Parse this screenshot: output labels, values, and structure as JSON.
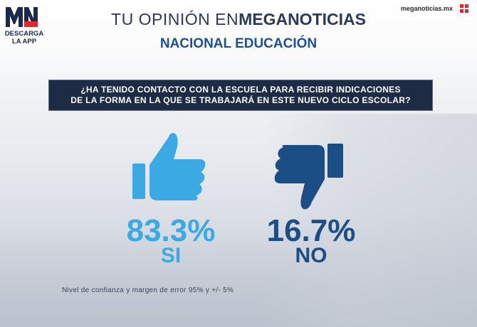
{
  "logo": {
    "mark_text": "MN",
    "line1": "DESCARGA",
    "line2": "LA APP",
    "icon": "meganoticias-logo-icon"
  },
  "site": {
    "text": "meganoticias.mx",
    "icon": "meganoticias-grid-icon"
  },
  "header": {
    "title_thin": "TU OPINIÓN EN",
    "title_bold": "MEGANOTICIAS",
    "subtitle": "NACIONAL EDUCACIÓN"
  },
  "question": {
    "line1": "¿HA TENIDO CONTACTO CON LA ESCUELA PARA RECIBIR INDICACIONES",
    "line2": "DE LA FORMA EN LA QUE SE TRABAJARÁ EN ESTE NUEVO CICLO ESCOLAR?"
  },
  "results": [
    {
      "percent_text": "83.3%",
      "label": "SI",
      "value": 83.3,
      "color": "#3aa9e4",
      "icon": "thumbs-up-icon"
    },
    {
      "percent_text": "16.7%",
      "label": "NO",
      "value": 16.7,
      "color": "#1b4e84",
      "icon": "thumbs-down-icon"
    }
  ],
  "footnote": "Nivel de confianza y margen de error 95% y +/- 5%",
  "colors": {
    "question_bg": "#1e2b44",
    "subtitle": "#1d4f91",
    "title": "#2b3a55"
  }
}
